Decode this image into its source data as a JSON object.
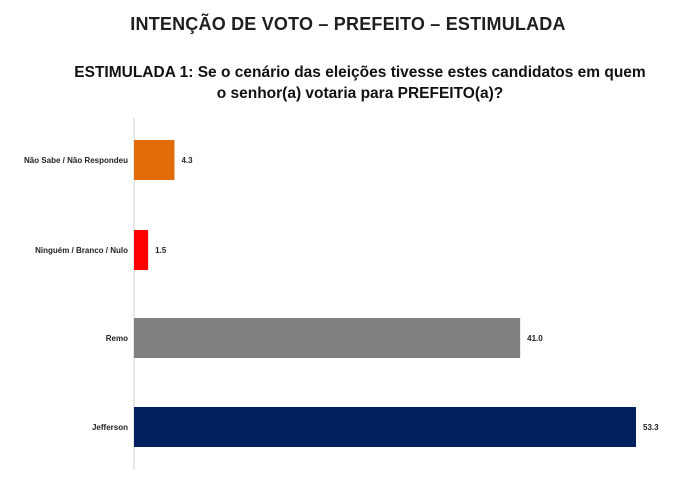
{
  "title": "INTENÇÃO DE VOTO – PREFEITO – ESTIMULADA",
  "subtitle_line1": "ESTIMULADA 1: Se o cenário das eleições tivesse estes candidatos em quem",
  "subtitle_line2": "o senhor(a) votaria para PREFEITO(a)?",
  "chart_data": {
    "type": "bar",
    "orientation": "horizontal",
    "categories": [
      "Não Sabe / Não Respondeu",
      "Ninguém / Branco / Nulo",
      "Remo",
      "Jefferson"
    ],
    "values": [
      4.3,
      1.5,
      41.0,
      53.3
    ],
    "value_labels": [
      "4.3",
      "1.5",
      "41.0",
      "53.3"
    ],
    "colors": [
      "#E36C0A",
      "#FF0000",
      "#808080",
      "#002060"
    ],
    "xlim": [
      0,
      53.3
    ],
    "grid": false,
    "legend": "none"
  }
}
